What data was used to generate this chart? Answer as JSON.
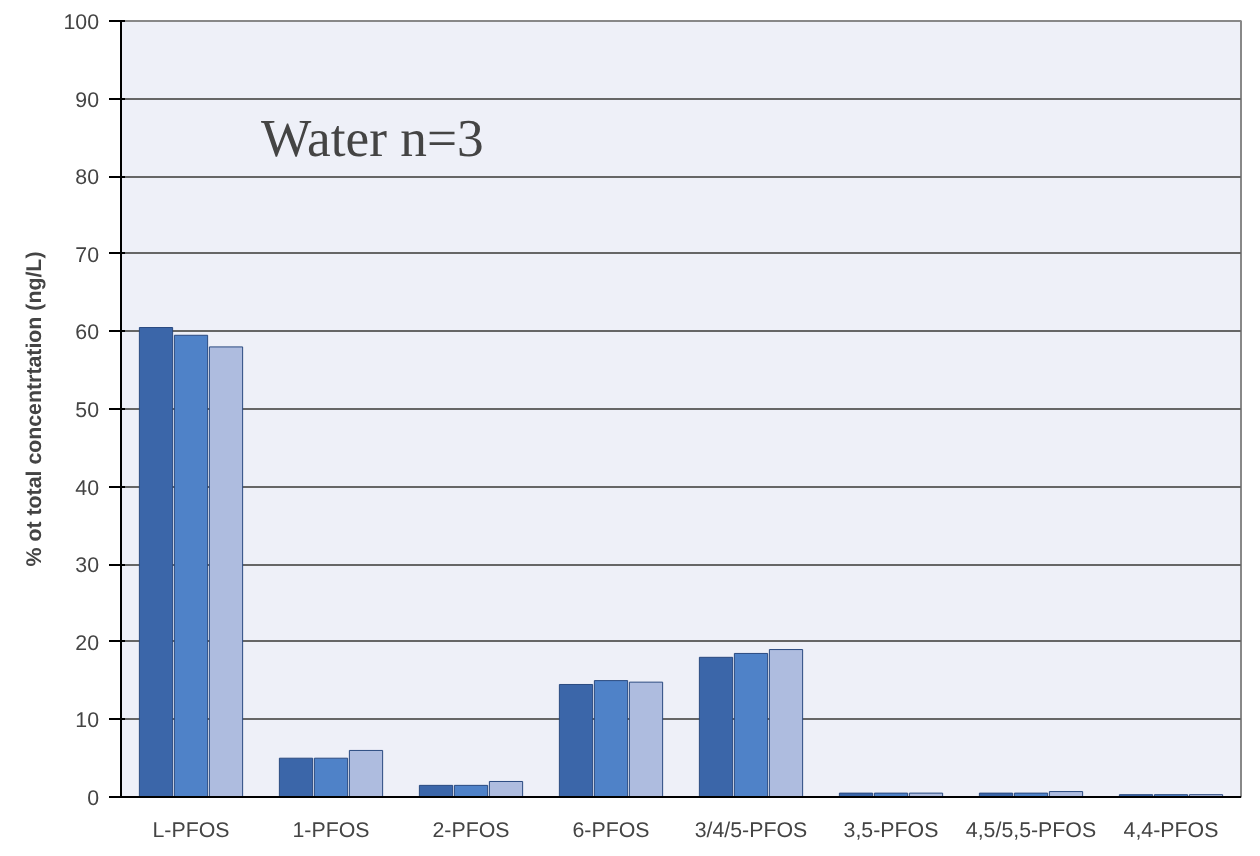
{
  "chart_data": {
    "type": "bar",
    "ylabel": "% ot total concentrtation (ng/L)",
    "categories": [
      "L-PFOS",
      "1-PFOS",
      "2-PFOS",
      "6-PFOS",
      "3/4/5-PFOS",
      "3,5-PFOS",
      "4,5/5,5-PFOS",
      "4,4-PFOS"
    ],
    "series": [
      {
        "color": "#3b66a9",
        "values": [
          60.5,
          5,
          1.5,
          14.5,
          18,
          0.5,
          0.5,
          0.3
        ]
      },
      {
        "color": "#4f82c8",
        "values": [
          59.5,
          5,
          1.5,
          15,
          18.5,
          0.5,
          0.5,
          0.3
        ]
      },
      {
        "color": "#aebcdf",
        "values": [
          58,
          6,
          2,
          14.8,
          19,
          0.5,
          0.7,
          0.3
        ]
      }
    ],
    "ylim": [
      0,
      100
    ],
    "yticks": [
      0,
      10,
      20,
      30,
      40,
      50,
      60,
      70,
      80,
      90,
      100
    ],
    "grid": "y",
    "annotations": [
      "Water n=3"
    ]
  }
}
